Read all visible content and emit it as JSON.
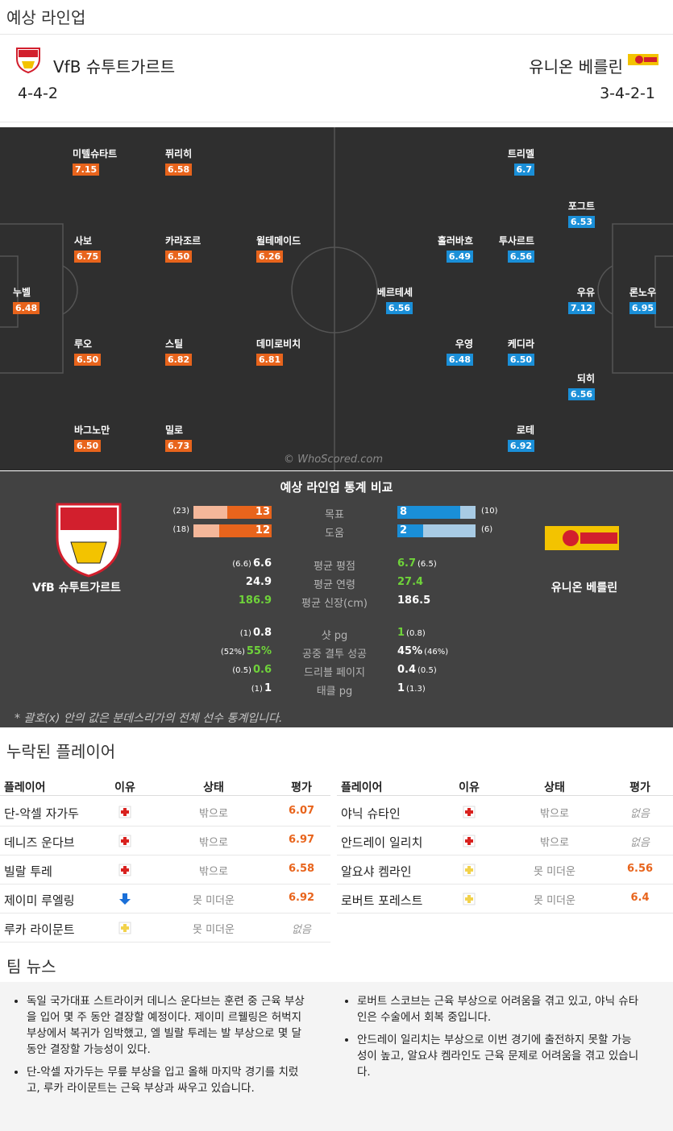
{
  "header": {
    "title": "예상 라인업"
  },
  "teams": {
    "home": {
      "name": "VfB 슈투트가르트",
      "formation": "4-4-2"
    },
    "away": {
      "name": "유니온 베를린",
      "formation": "3-4-2-1"
    }
  },
  "pitch": {
    "home": [
      {
        "name": "미텔슈타트",
        "rating": "7.15"
      },
      {
        "name": "퓌리히",
        "rating": "6.58"
      },
      {
        "name": "사보",
        "rating": "6.75"
      },
      {
        "name": "카라조르",
        "rating": "6.50"
      },
      {
        "name": "윌테메이드",
        "rating": "6.26"
      },
      {
        "name": "누벨",
        "rating": "6.48"
      },
      {
        "name": "루오",
        "rating": "6.50"
      },
      {
        "name": "스틸",
        "rating": "6.82"
      },
      {
        "name": "데미로비치",
        "rating": "6.81"
      },
      {
        "name": "바그노만",
        "rating": "6.50"
      },
      {
        "name": "밀로",
        "rating": "6.73"
      }
    ],
    "away": [
      {
        "name": "트리멜",
        "rating": "6.7"
      },
      {
        "name": "포그트",
        "rating": "6.53"
      },
      {
        "name": "홀러바흐",
        "rating": "6.49"
      },
      {
        "name": "투사르트",
        "rating": "6.56"
      },
      {
        "name": "베르테세",
        "rating": "6.56"
      },
      {
        "name": "우유",
        "rating": "7.12"
      },
      {
        "name": "론노우",
        "rating": "6.95"
      },
      {
        "name": "우영",
        "rating": "6.48"
      },
      {
        "name": "케디라",
        "rating": "6.50"
      },
      {
        "name": "되히",
        "rating": "6.56"
      },
      {
        "name": "로테",
        "rating": "6.92"
      }
    ],
    "watermark": "© WhoScored.com"
  },
  "stats": {
    "title": "예상 라인업 통계 비교",
    "bars": [
      {
        "label": "목표",
        "home": 13,
        "home_league": {
          "value": 23,
          "label": "(23)"
        },
        "away": 8,
        "away_league": {
          "value": 10,
          "label": "(10)"
        }
      },
      {
        "label": "도움",
        "home": 12,
        "home_league": {
          "value": 18,
          "label": "(18)"
        },
        "away": 2,
        "away_league": {
          "value": 6,
          "label": "(6)"
        }
      }
    ],
    "rows": [
      {
        "label": "평균 평점",
        "home": "6.6",
        "home_league": "(6.6)",
        "away": "6.7",
        "away_league": "(6.5)",
        "better": "away"
      },
      {
        "label": "평균 연령",
        "home": "24.9",
        "away": "27.4",
        "better": "away"
      },
      {
        "label": "평균 신장(cm)",
        "home": "186.9",
        "away": "186.5",
        "better": "home"
      },
      {
        "label": "샷 pg",
        "home": "0.8",
        "home_league": "(1)",
        "away": "1",
        "away_league": "(0.8)",
        "better": "away"
      },
      {
        "label": "공중 결투 성공",
        "home": "55%",
        "home_league": "(52%)",
        "away": "45%",
        "away_league": "(46%)",
        "better": "home"
      },
      {
        "label": "드리블 페이지",
        "home": "0.6",
        "home_league": "(0.5)",
        "away": "0.4",
        "away_league": "(0.5)",
        "better": "home"
      },
      {
        "label": "태클 pg",
        "home": "1",
        "home_league": "(1)",
        "away": "1",
        "away_league": "(1.3)",
        "better": null
      }
    ],
    "note": "* 괄호(x) 안의 값은 분데스리가의 전체 선수 통계입니다."
  },
  "missing": {
    "title": "누락된 플레이어",
    "columns": [
      "플레이어",
      "이유",
      "상태",
      "평가"
    ],
    "home": [
      {
        "player": "단-악셀 자가두",
        "reason": "red-cross",
        "status": "밖으로",
        "rating": "6.07"
      },
      {
        "player": "데니즈 운다브",
        "reason": "red-cross",
        "status": "밖으로",
        "rating": "6.97"
      },
      {
        "player": "빌랄 투레",
        "reason": "red-cross",
        "status": "밖으로",
        "rating": "6.58"
      },
      {
        "player": "제이미 루엘링",
        "reason": "blue-arrow",
        "status": "못 미더운",
        "rating": "6.92"
      },
      {
        "player": "루카 라이문트",
        "reason": "yellow-cross",
        "status": "못 미더운",
        "rating": "없음"
      }
    ],
    "away": [
      {
        "player": "야닉 슈타인",
        "reason": "red-cross",
        "status": "밖으로",
        "rating": "없음"
      },
      {
        "player": "안드레이 일리치",
        "reason": "red-cross",
        "status": "밖으로",
        "rating": "없음"
      },
      {
        "player": "알요샤 켐라인",
        "reason": "yellow-cross",
        "status": "못 미더운",
        "rating": "6.56"
      },
      {
        "player": "로버트 포레스트",
        "reason": "yellow-cross",
        "status": "못 미더운",
        "rating": "6.4"
      }
    ]
  },
  "news": {
    "title": "팀 뉴스",
    "left": [
      "독일 국가대표 스트라이커 데니스 운다브는 훈련 중 근육 부상을 입어 몇 주 동안 결장할 예정이다. 제이미 르웰링은 허벅지 부상에서 복귀가 임박했고, 엘 빌랄 투레는 발 부상으로 몇 달 동안 결장할 가능성이 있다.",
      "단-악셀 자가두는 무릎 부상을 입고 올해 마지막 경기를 치렀고, 루카 라이문트는 근육 부상과 싸우고 있습니다."
    ],
    "right": [
      "로버트 스코브는 근육 부상으로 어려움을 겪고 있고, 야닉 슈타인은 수술에서 회복 중입니다.",
      "안드레이 일리치는 부상으로 이번 경기에 출전하지 못할 가능성이 높고, 알요샤 켐라인도 근육 문제로 어려움을 겪고 있습니다."
    ]
  }
}
